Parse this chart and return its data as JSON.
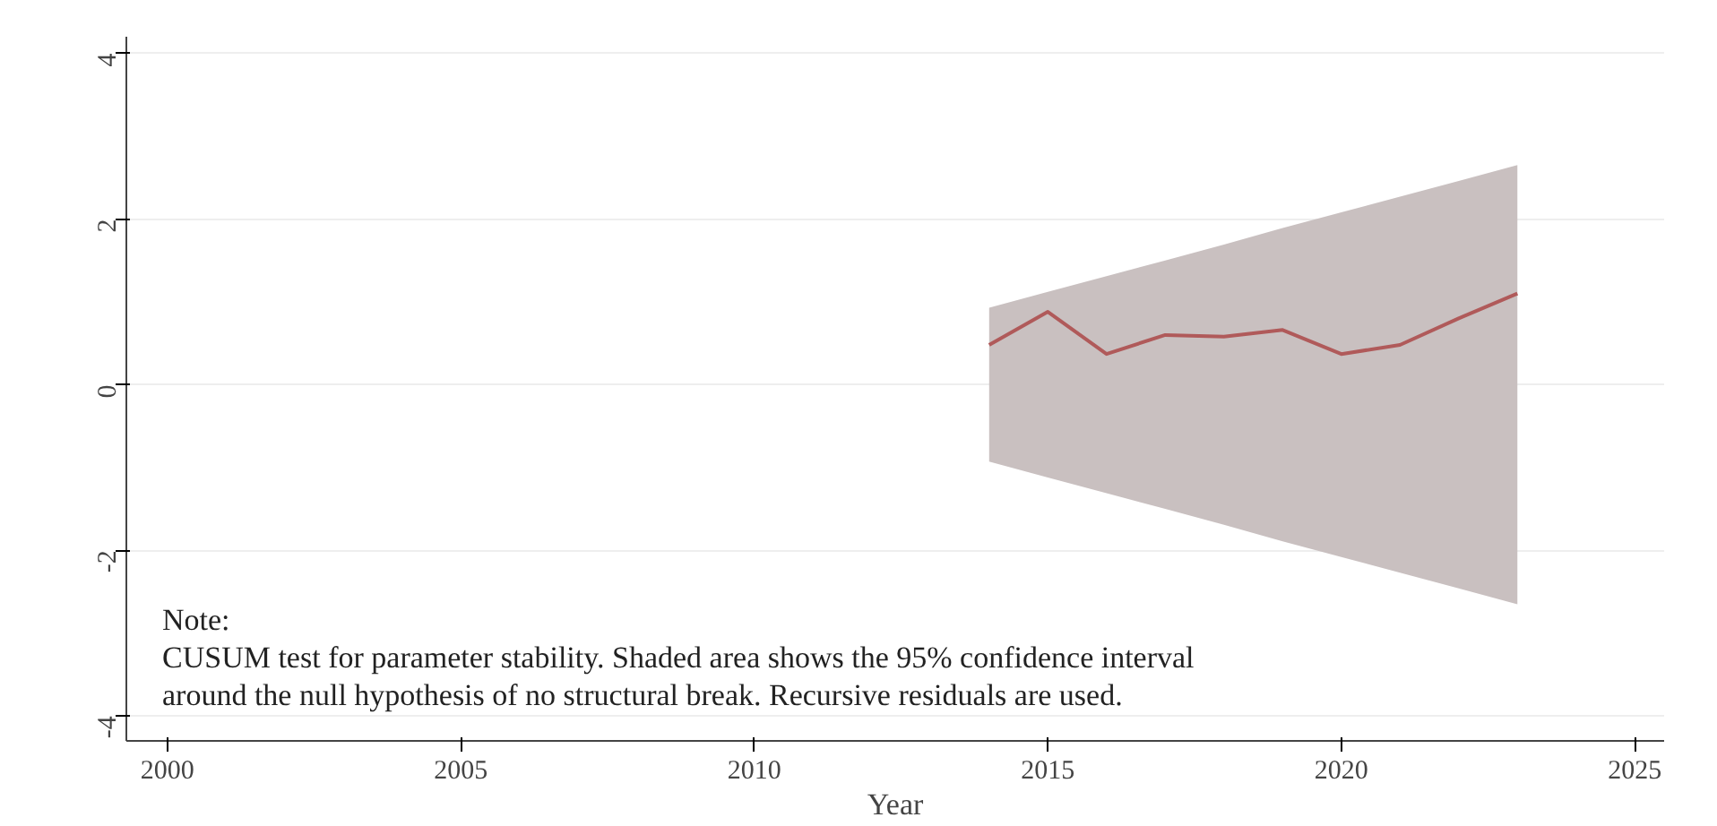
{
  "chart_data": {
    "type": "line",
    "xlabel": "Year",
    "x": [
      2014,
      2015,
      2016,
      2017,
      2018,
      2019,
      2020,
      2021,
      2022,
      2023
    ],
    "series": [
      {
        "color": "#b05a5a",
        "values": [
          0.48,
          0.88,
          0.37,
          0.6,
          0.58,
          0.66,
          0.37,
          0.48,
          0.8,
          1.1
        ],
        "lower": [
          -0.93,
          -1.12,
          -1.31,
          -1.5,
          -1.69,
          -1.89,
          -2.08,
          -2.27,
          -2.46,
          -2.65
        ],
        "upper": [
          0.93,
          1.12,
          1.31,
          1.5,
          1.69,
          1.89,
          2.08,
          2.27,
          2.46,
          2.65
        ]
      }
    ],
    "xlim": [
      1999.3,
      2025.5
    ],
    "xticks": [
      2000,
      2005,
      2010,
      2015,
      2020,
      2025
    ],
    "ylim": [
      -4.3,
      4.2
    ],
    "yticks": [
      -4,
      -2,
      0,
      2,
      4
    ],
    "grid": "y",
    "annotations": [
      "Note:\nCUSUM test for parameter stability. Shaded area shows the 95% confidence interval\naround the null hypothesis of no structural break. Recursive  residuals are used."
    ]
  }
}
